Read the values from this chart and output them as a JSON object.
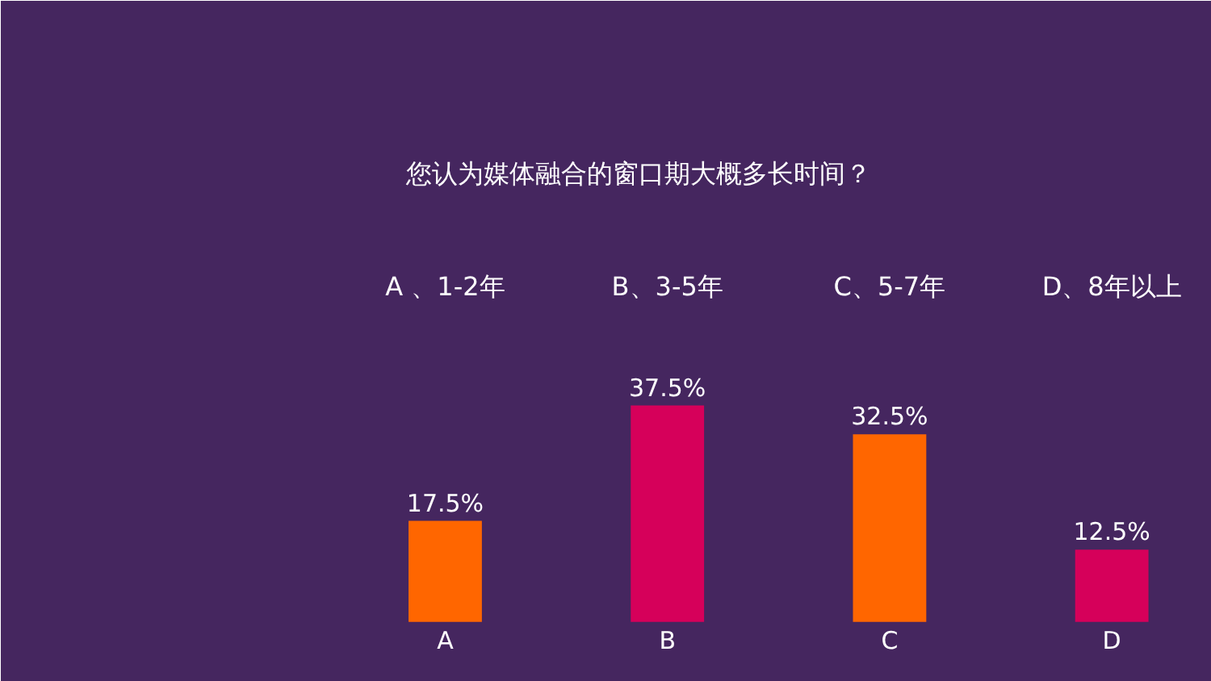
{
  "chart_data": {
    "type": "bar",
    "title": "您认为媒体融合的窗口期大概多长时间？",
    "categories": [
      "A",
      "B",
      "C",
      "D"
    ],
    "values": [
      17.5,
      37.5,
      32.5,
      12.5
    ],
    "colors": [
      "#ff6600",
      "#d6005a",
      "#ff6600",
      "#d6005a"
    ],
    "value_labels": [
      "17.5%",
      "37.5%",
      "32.5%",
      "12.5%"
    ],
    "annotations": [
      "A 、1-2年",
      "B、3-5年",
      "C、5-7年",
      "D、8年以上"
    ]
  }
}
